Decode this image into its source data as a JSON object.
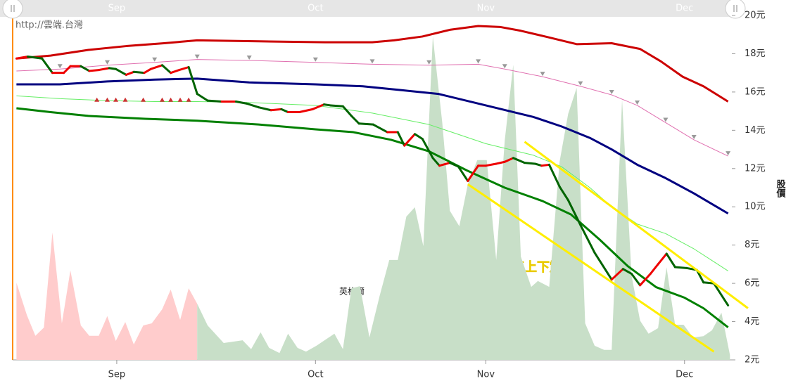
{
  "chart_data": {
    "type": "line",
    "source": "http://雲端.台灣",
    "ylabel": "股價",
    "annotations": [
      "英格爾",
      "在最低值上下震盪"
    ],
    "xlim": [
      0,
      76
    ],
    "xticks": [
      {
        "value": 11,
        "label": "Sep"
      },
      {
        "value": 32,
        "label": "Oct"
      },
      {
        "value": 50,
        "label": "Nov"
      },
      {
        "value": 71,
        "label": "Dec"
      }
    ],
    "ylim": [
      2,
      20
    ],
    "yticks": [
      {
        "value": 20,
        "label": "20元"
      },
      {
        "value": 18,
        "label": "18元"
      },
      {
        "value": 16,
        "label": "16元"
      },
      {
        "value": 14,
        "label": "14元"
      },
      {
        "value": 12,
        "label": "12元"
      },
      {
        "value": 10,
        "label": "10元"
      },
      {
        "value": 8,
        "label": "8元"
      },
      {
        "value": 6,
        "label": "6元"
      },
      {
        "value": 4,
        "label": "4元"
      },
      {
        "value": 2,
        "label": "2元"
      }
    ],
    "y2lim": [
      0,
      100
    ],
    "series": [
      {
        "type": "area",
        "axis": "y2",
        "color": "#ffcccc",
        "x": [
          0.4,
          1.5,
          2.4,
          3.3,
          4.2,
          5.2,
          6.1,
          7.2,
          8.1,
          9.1,
          10.0,
          10.9,
          11.9,
          12.8,
          13.8,
          14.7,
          15.8,
          16.7,
          17.7,
          18.6,
          19.5
        ],
        "values": [
          22.4,
          13,
          7,
          9.4,
          37,
          10.6,
          26,
          10,
          7,
          7,
          12.7,
          5.5,
          11,
          4.5,
          10,
          10.6,
          14.7,
          20.4,
          11.6,
          20.8,
          16.3
        ]
      },
      {
        "type": "area",
        "axis": "y2",
        "color": "#c8dfc8",
        "x": [
          19.5,
          20.6,
          22.3,
          24.3,
          25.2,
          26.2,
          27.1,
          28.2,
          29.1,
          30.1,
          31.0,
          32.1,
          34.0,
          34.9,
          35.8,
          36.7,
          37.7,
          38.8,
          39.8,
          40.7,
          41.6,
          42.5,
          43.4,
          44.4,
          45.4,
          46.2,
          47.2,
          48.1,
          49.1,
          50.1,
          51.1,
          52.0,
          52.9,
          53.7,
          54.8,
          55.5,
          56.7,
          57.8,
          58.7,
          59.6,
          60.5,
          61.5,
          62.5,
          63.3,
          64.4,
          65.4,
          66.3,
          67.2,
          68.2,
          69.1,
          70.0,
          70.9,
          71.9,
          73.0,
          73.9,
          74.9,
          75.8
        ],
        "values": [
          16.3,
          10,
          4.9,
          5.7,
          3.1,
          8,
          3.5,
          2,
          7.6,
          3.5,
          2.4,
          4.1,
          7.6,
          3.1,
          20.8,
          21.4,
          6.5,
          18.8,
          29,
          29,
          41.6,
          44.3,
          33,
          93.9,
          68.8,
          43.3,
          38.8,
          51,
          58,
          58,
          29,
          63.7,
          85.7,
          30,
          21.2,
          22.9,
          21.2,
          57.6,
          71.4,
          79,
          10.6,
          4.1,
          2.9,
          2.9,
          75.5,
          24.5,
          11.4,
          7.6,
          9.2,
          26.9,
          10.2,
          10.2,
          6.5,
          6.9,
          8.6,
          13.7,
          1.4
        ]
      },
      {
        "type": "line",
        "color": "#cc0000",
        "width": 3,
        "x": [
          0.4,
          4,
          8,
          12,
          16,
          19.5,
          26,
          33,
          38,
          40.3,
          43.3,
          46.2,
          49.2,
          51.5,
          53.7,
          56.7,
          59.6,
          63.3,
          66.3,
          68.5,
          70.8,
          73,
          75.6
        ],
        "values": [
          17.75,
          17.9,
          18.2,
          18.4,
          18.55,
          18.7,
          18.65,
          18.6,
          18.6,
          18.7,
          18.9,
          19.25,
          19.45,
          19.4,
          19.2,
          18.85,
          18.5,
          18.55,
          18.25,
          17.6,
          16.8,
          16.3,
          15.5
        ]
      },
      {
        "type": "line",
        "color": "#e070b0",
        "width": 1,
        "marker": "triangle-down",
        "marker_color": "#999999",
        "x": [
          0.4,
          5,
          10,
          15,
          19.5,
          25,
          32,
          38,
          44,
          49.2,
          52,
          56,
          60,
          63.3,
          66,
          69,
          72,
          75.6
        ],
        "values": [
          17.1,
          17.2,
          17.4,
          17.55,
          17.7,
          17.65,
          17.55,
          17.45,
          17.4,
          17.45,
          17.2,
          16.8,
          16.3,
          15.85,
          15.3,
          14.4,
          13.5,
          12.65
        ]
      },
      {
        "type": "line",
        "color": "#000080",
        "width": 3,
        "x": [
          0.4,
          5,
          10,
          15,
          19.5,
          25,
          32,
          37,
          41,
          45,
          50,
          55,
          58,
          61,
          63.3,
          66,
          69,
          72,
          75.6
        ],
        "values": [
          16.4,
          16.4,
          16.55,
          16.65,
          16.7,
          16.5,
          16.4,
          16.3,
          16.1,
          15.9,
          15.3,
          14.7,
          14.2,
          13.6,
          13.0,
          12.2,
          11.5,
          10.7,
          9.65
        ]
      },
      {
        "type": "line",
        "color": "#66ee66",
        "width": 1,
        "x": [
          0.4,
          5,
          10,
          15,
          19.5,
          25,
          32,
          38,
          44,
          50,
          55,
          58,
          61,
          63.3,
          66,
          69,
          72,
          75.6
        ],
        "values": [
          15.8,
          15.65,
          15.55,
          15.5,
          15.5,
          15.45,
          15.3,
          14.9,
          14.3,
          13.3,
          12.7,
          12.1,
          11.0,
          10.0,
          9.1,
          8.6,
          7.8,
          6.65
        ]
      },
      {
        "type": "line",
        "color": "#008000",
        "width": 3,
        "x": [
          0.4,
          4,
          8,
          14,
          19.5,
          26,
          32,
          36,
          40,
          44,
          48,
          52,
          56,
          59,
          62,
          65,
          68,
          71,
          73,
          75.6
        ],
        "values": [
          15.15,
          14.95,
          14.75,
          14.6,
          14.5,
          14.3,
          14.05,
          13.9,
          13.5,
          12.9,
          11.9,
          11.0,
          10.3,
          9.6,
          8.3,
          6.9,
          5.8,
          5.25,
          4.7,
          3.7
        ]
      },
      {
        "type": "price",
        "color": "#ee0000",
        "down_color": "#006400",
        "width": 3,
        "x": [
          0.4,
          1.6,
          3.1,
          4.2,
          5.4,
          6.1,
          7.2,
          8.1,
          9.1,
          10.2,
          10.9,
          12.0,
          12.8,
          13.9,
          14.6,
          15.8,
          16.7,
          17.6,
          18.6,
          19.5,
          20.6,
          22.1,
          23.6,
          24.7,
          26.0,
          27.3,
          28.4,
          29.1,
          30.3,
          31.7,
          32.9,
          33.6,
          34.9,
          35.8,
          36.6,
          38.1,
          39.6,
          40.7,
          41.4,
          42.5,
          43.3,
          44.4,
          45.1,
          46.2,
          47.1,
          48.1,
          49.2,
          50.0,
          51.1,
          52.0,
          52.9,
          54.1,
          55.2,
          55.9,
          56.7,
          57.8,
          58.7,
          60.0,
          61.5,
          63.3,
          64.5,
          65.4,
          66.3,
          67.4,
          68.2,
          69.1,
          70.0,
          71.2,
          72.3,
          73.0,
          74.1,
          75.6
        ],
        "values": [
          17.75,
          17.85,
          17.75,
          17.0,
          17.0,
          17.35,
          17.35,
          17.1,
          17.15,
          17.25,
          17.2,
          16.9,
          17.05,
          17.0,
          17.2,
          17.4,
          17.0,
          17.15,
          17.3,
          15.9,
          15.55,
          15.5,
          15.5,
          15.4,
          15.2,
          15.05,
          15.1,
          14.95,
          14.95,
          15.1,
          15.35,
          15.3,
          15.25,
          14.75,
          14.35,
          14.3,
          13.9,
          13.9,
          13.2,
          13.8,
          13.55,
          12.55,
          12.15,
          12.3,
          12.1,
          11.35,
          12.15,
          12.15,
          12.25,
          12.35,
          12.55,
          12.3,
          12.25,
          12.15,
          12.2,
          11.05,
          10.35,
          9.05,
          7.6,
          6.2,
          6.75,
          6.5,
          5.9,
          6.5,
          7.0,
          7.55,
          6.85,
          6.8,
          6.7,
          6.05,
          6.0,
          4.85
        ]
      },
      {
        "type": "markers",
        "marker": "triangle-up",
        "color": "#cc3333",
        "x": [
          8.9,
          10.0,
          10.9,
          11.9,
          13.8,
          15.8,
          16.7,
          17.7,
          18.6
        ],
        "values": [
          15.6,
          15.6,
          15.6,
          15.6,
          15.6,
          15.6,
          15.6,
          15.6,
          15.6
        ]
      },
      {
        "type": "line",
        "color": "#ffee00",
        "width": 3,
        "x": [
          48.1,
          74.1
        ],
        "values": [
          11.18,
          2.43
        ]
      },
      {
        "type": "line",
        "color": "#ffee00",
        "width": 3,
        "x": [
          54.1,
          77.7
        ],
        "values": [
          13.4,
          4.7
        ]
      }
    ]
  }
}
